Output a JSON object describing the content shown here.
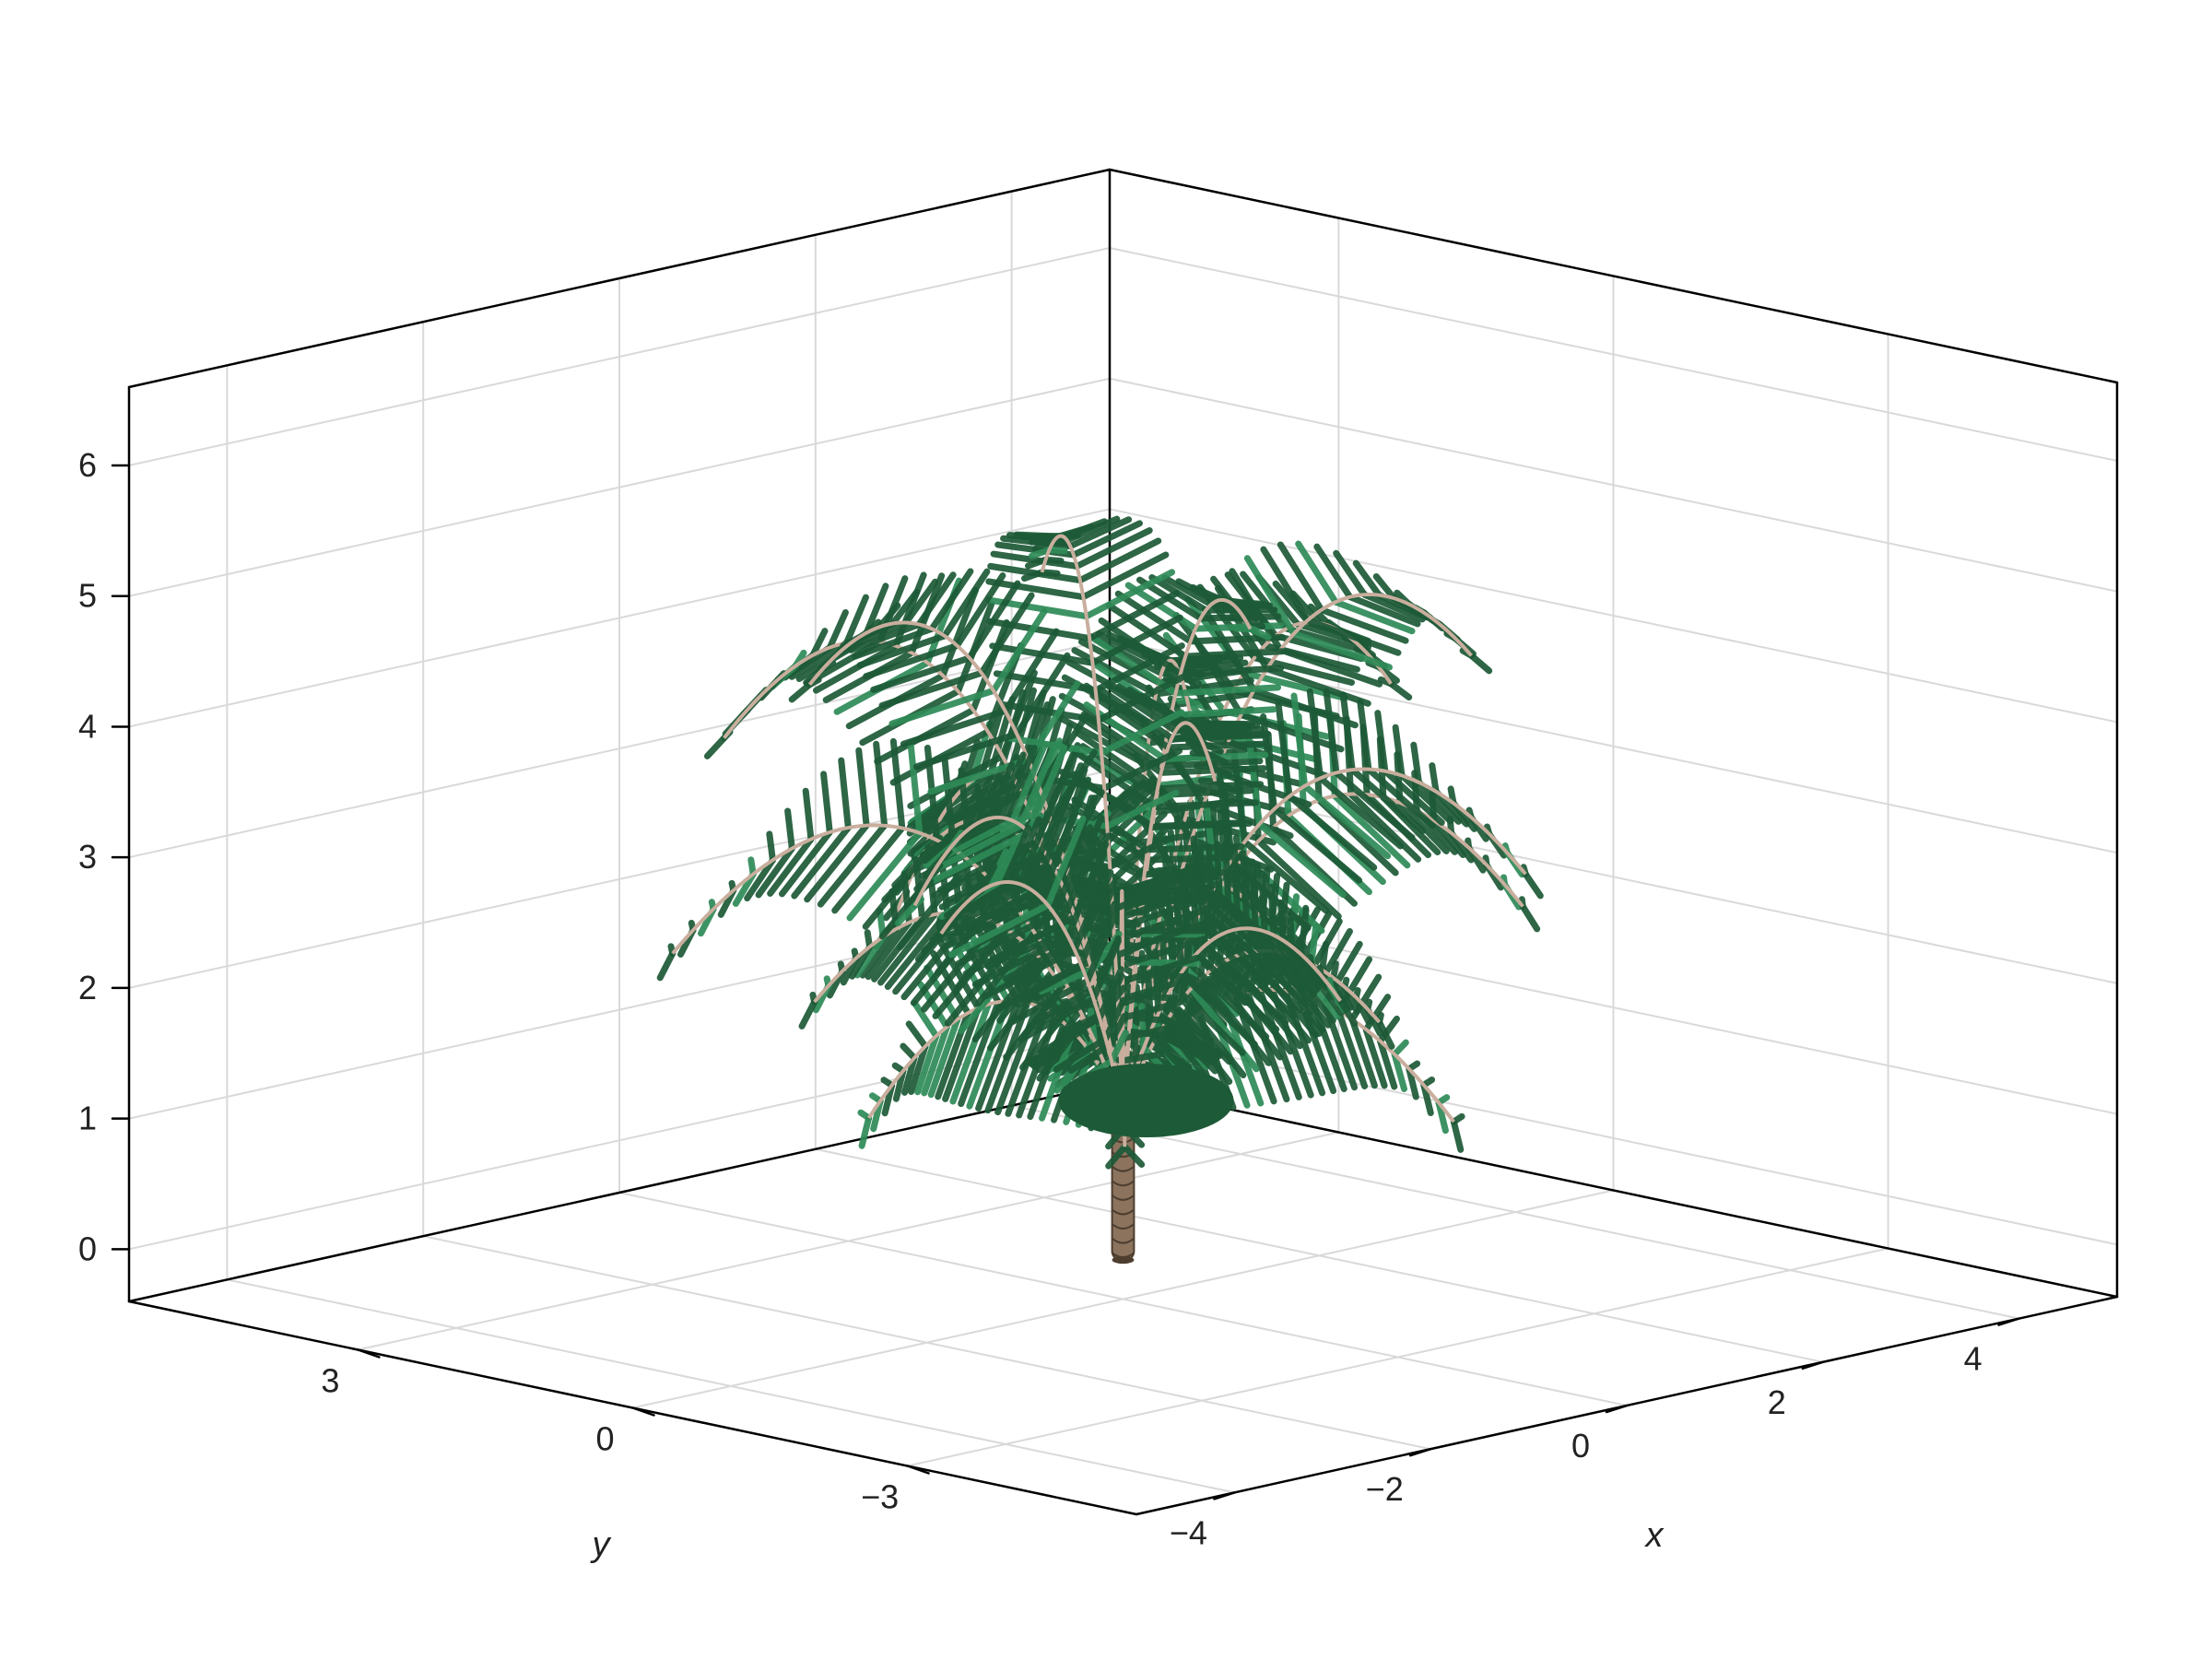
{
  "chart_data": {
    "type": "3d-surface",
    "xlabel": "x",
    "ylabel": "y",
    "zlabel": "",
    "xlim": [
      -5,
      5
    ],
    "ylim": [
      -5.5,
      5.5
    ],
    "zlim": [
      -0.4,
      6.6
    ],
    "x_ticks": [
      -4,
      -2,
      0,
      2,
      4
    ],
    "x_tick_labels": [
      "−4",
      "−2",
      "0",
      "2",
      "4"
    ],
    "y_ticks": [
      3,
      0,
      -3
    ],
    "y_tick_labels": [
      "3",
      "0",
      "−3"
    ],
    "z_ticks": [
      0,
      1,
      2,
      3,
      4,
      5,
      6
    ],
    "z_tick_labels": [
      "0",
      "1",
      "2",
      "3",
      "4",
      "5",
      "6"
    ],
    "grid": true,
    "object": "palm tree",
    "trunk": {
      "base_z": -0.1,
      "top_z": 1.0,
      "radius": 0.3
    },
    "fronds": {
      "count": 24,
      "crown_z": 1.05,
      "max_z": 6.4,
      "spread": 5.6
    },
    "colors": {
      "foliage": "#1d5a37",
      "foliage_light": "#2e8a57",
      "rachis": "#c9ae9e",
      "trunk": "#8b735e",
      "trunk_dark": "#4e3e2f",
      "grid": "#d9d9d9",
      "axis": "#000000"
    }
  }
}
